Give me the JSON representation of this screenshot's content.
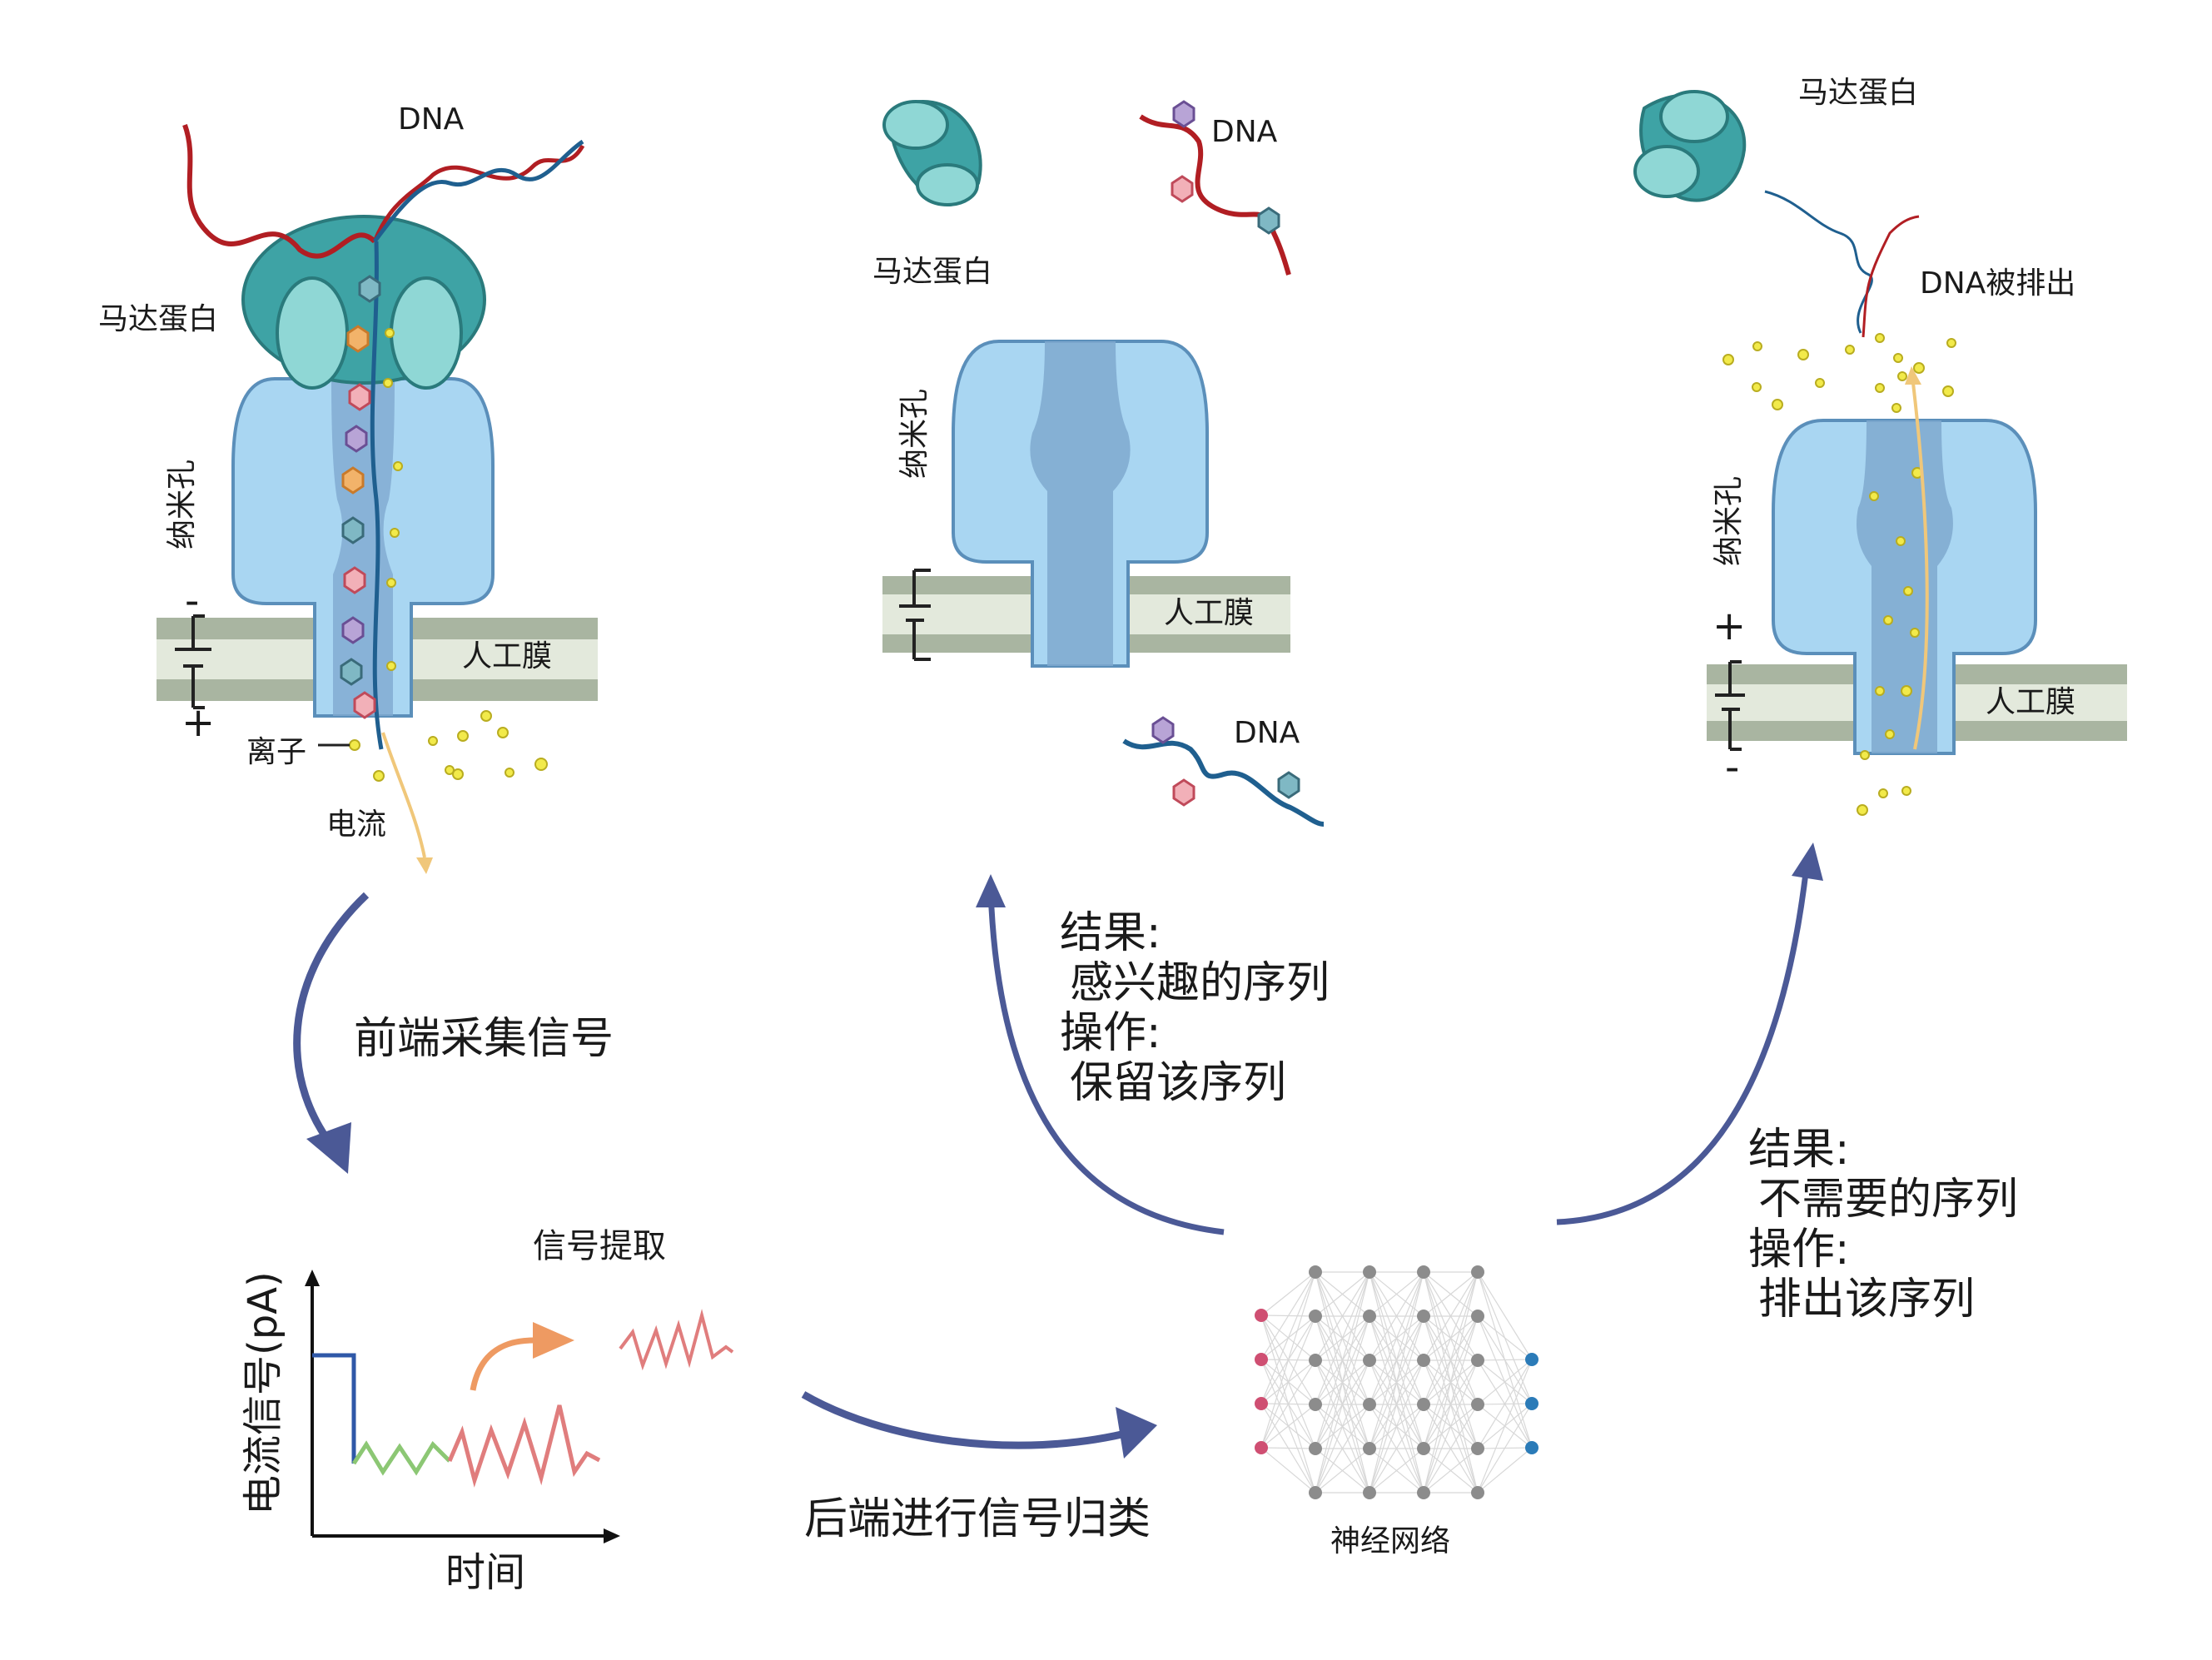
{
  "labels": {
    "dna_left": "DNA",
    "motor_left": "马达蛋白",
    "nanopore_left": "纳米孔",
    "membrane_left": "人工膜",
    "ion": "离子",
    "current": "电流",
    "motor_mid": "马达蛋白",
    "dna_mid_top": "DNA",
    "nanopore_mid": "纳米孔",
    "membrane_mid": "人工膜",
    "dna_mid_bottom": "DNA",
    "motor_right": "马达蛋白",
    "dna_ejected": "DNA被排出",
    "nanopore_right": "纳米孔",
    "membrane_right": "人工膜",
    "plus_left": "+",
    "minus_left": "-",
    "plus_right": "+",
    "minus_right": "-"
  },
  "steps": {
    "frontend": "前端采集信号",
    "signal_extract": "信号提取",
    "backend": "后端进行信号归类",
    "neural_net": "神经网络"
  },
  "chart": {
    "ylabel": "电流信号(pA)",
    "xlabel": "时间"
  },
  "results": {
    "keep": {
      "result_title": "结果:",
      "result_value": "感兴趣的序列",
      "action_title": "操作:",
      "action_value": "保留该序列"
    },
    "eject": {
      "result_title": "结果:",
      "result_value": "不需要的序列",
      "action_title": "操作:",
      "action_value": "排出该序列"
    }
  },
  "colors": {
    "nanopore_fill": "#a9d6f2",
    "nanopore_channel": "#7fa9cf",
    "motor_protein": "#3ea3a5",
    "motor_light": "#8fd7d5",
    "membrane_dark": "#a9b5a1",
    "membrane_light": "#e3e9dc",
    "dna_red": "#b11e23",
    "dna_blue": "#1f5f8f",
    "arrow": "#4b5996",
    "ion": "#f2ea4a",
    "signal_blue": "#2f58a8",
    "signal_green": "#8cc774",
    "signal_red": "#e07d7d",
    "nn_input": "#cf4f72",
    "nn_hidden": "#8c8c8c",
    "nn_output": "#2b7bb8"
  }
}
